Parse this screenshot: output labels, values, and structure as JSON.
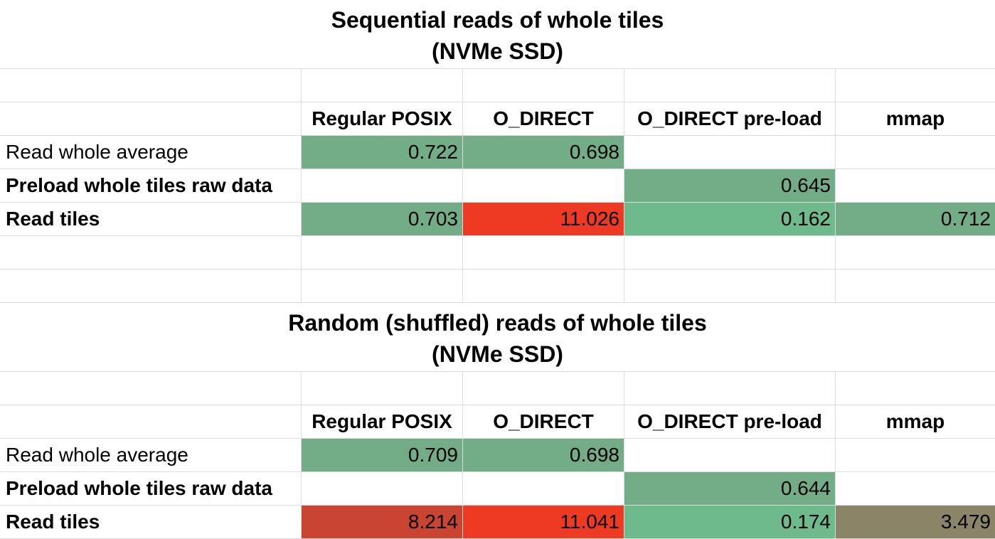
{
  "sections": [
    {
      "title_line1": "Sequential reads of whole tiles",
      "title_line2": "(NVMe SSD)",
      "headers": [
        "",
        "Regular POSIX",
        "O_DIRECT",
        "O_DIRECT pre-load",
        "mmap"
      ],
      "rows": [
        {
          "label": "Read whole average",
          "bold": false,
          "values": [
            "0.722",
            "0.698",
            "",
            ""
          ]
        },
        {
          "label": "Preload whole tiles raw data",
          "bold": true,
          "values": [
            "",
            "",
            "0.645",
            ""
          ]
        },
        {
          "label": "Read tiles",
          "bold": true,
          "values": [
            "0.703",
            "11.026",
            "0.162",
            "0.712"
          ]
        }
      ]
    },
    {
      "title_line1": "Random (shuffled) reads of whole tiles",
      "title_line2": "(NVMe SSD)",
      "headers": [
        "",
        "Regular POSIX",
        "O_DIRECT",
        "O_DIRECT pre-load",
        "mmap"
      ],
      "rows": [
        {
          "label": "Read whole average",
          "bold": false,
          "values": [
            "0.709",
            "0.698",
            "",
            ""
          ]
        },
        {
          "label": "Preload whole tiles raw data",
          "bold": true,
          "values": [
            "",
            "",
            "0.644",
            ""
          ]
        },
        {
          "label": "Read tiles",
          "bold": true,
          "values": [
            "8.214",
            "11.041",
            "0.174",
            "3.479"
          ]
        }
      ]
    }
  ],
  "cell_colors": {
    "green": "#72ad87",
    "light_green": "#6fba8c",
    "red": "#ee3a23",
    "dark_red": "#c94532",
    "olive": "#8a8566"
  },
  "fills": [
    [
      [
        "green",
        "green",
        null,
        null
      ],
      [
        null,
        null,
        "green",
        null
      ],
      [
        "green",
        "red",
        "light_green",
        "green"
      ]
    ],
    [
      [
        "green",
        "green",
        null,
        null
      ],
      [
        null,
        null,
        "green",
        null
      ],
      [
        "dark_red",
        "red",
        "light_green",
        "olive"
      ]
    ]
  ]
}
